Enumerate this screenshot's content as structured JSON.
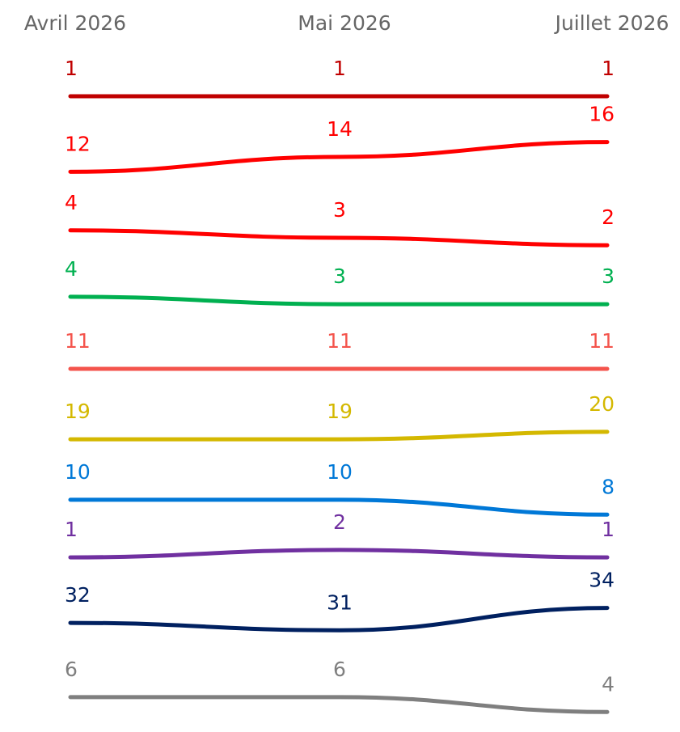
{
  "chart_data": {
    "type": "line",
    "categories": [
      "Avril 2026",
      "Mai 2026",
      "Juillet 2026"
    ],
    "legend": "none",
    "grid": false,
    "series": [
      {
        "color": "#c00000",
        "values": [
          1,
          1,
          1
        ]
      },
      {
        "color": "#ff0000",
        "values": [
          12,
          14,
          16
        ]
      },
      {
        "color": "#ff0000",
        "values": [
          4,
          3,
          2
        ]
      },
      {
        "color": "#00b050",
        "values": [
          4,
          3,
          3
        ]
      },
      {
        "color": "#f4544c",
        "values": [
          11,
          11,
          11
        ]
      },
      {
        "color": "#d4b800",
        "values": [
          19,
          19,
          20
        ]
      },
      {
        "color": "#0078d7",
        "values": [
          10,
          10,
          8
        ]
      },
      {
        "color": "#7030a0",
        "values": [
          1,
          2,
          1
        ]
      },
      {
        "color": "#002060",
        "values": [
          32,
          31,
          34
        ]
      },
      {
        "color": "#7f7f7f",
        "values": [
          6,
          6,
          4
        ]
      }
    ]
  }
}
